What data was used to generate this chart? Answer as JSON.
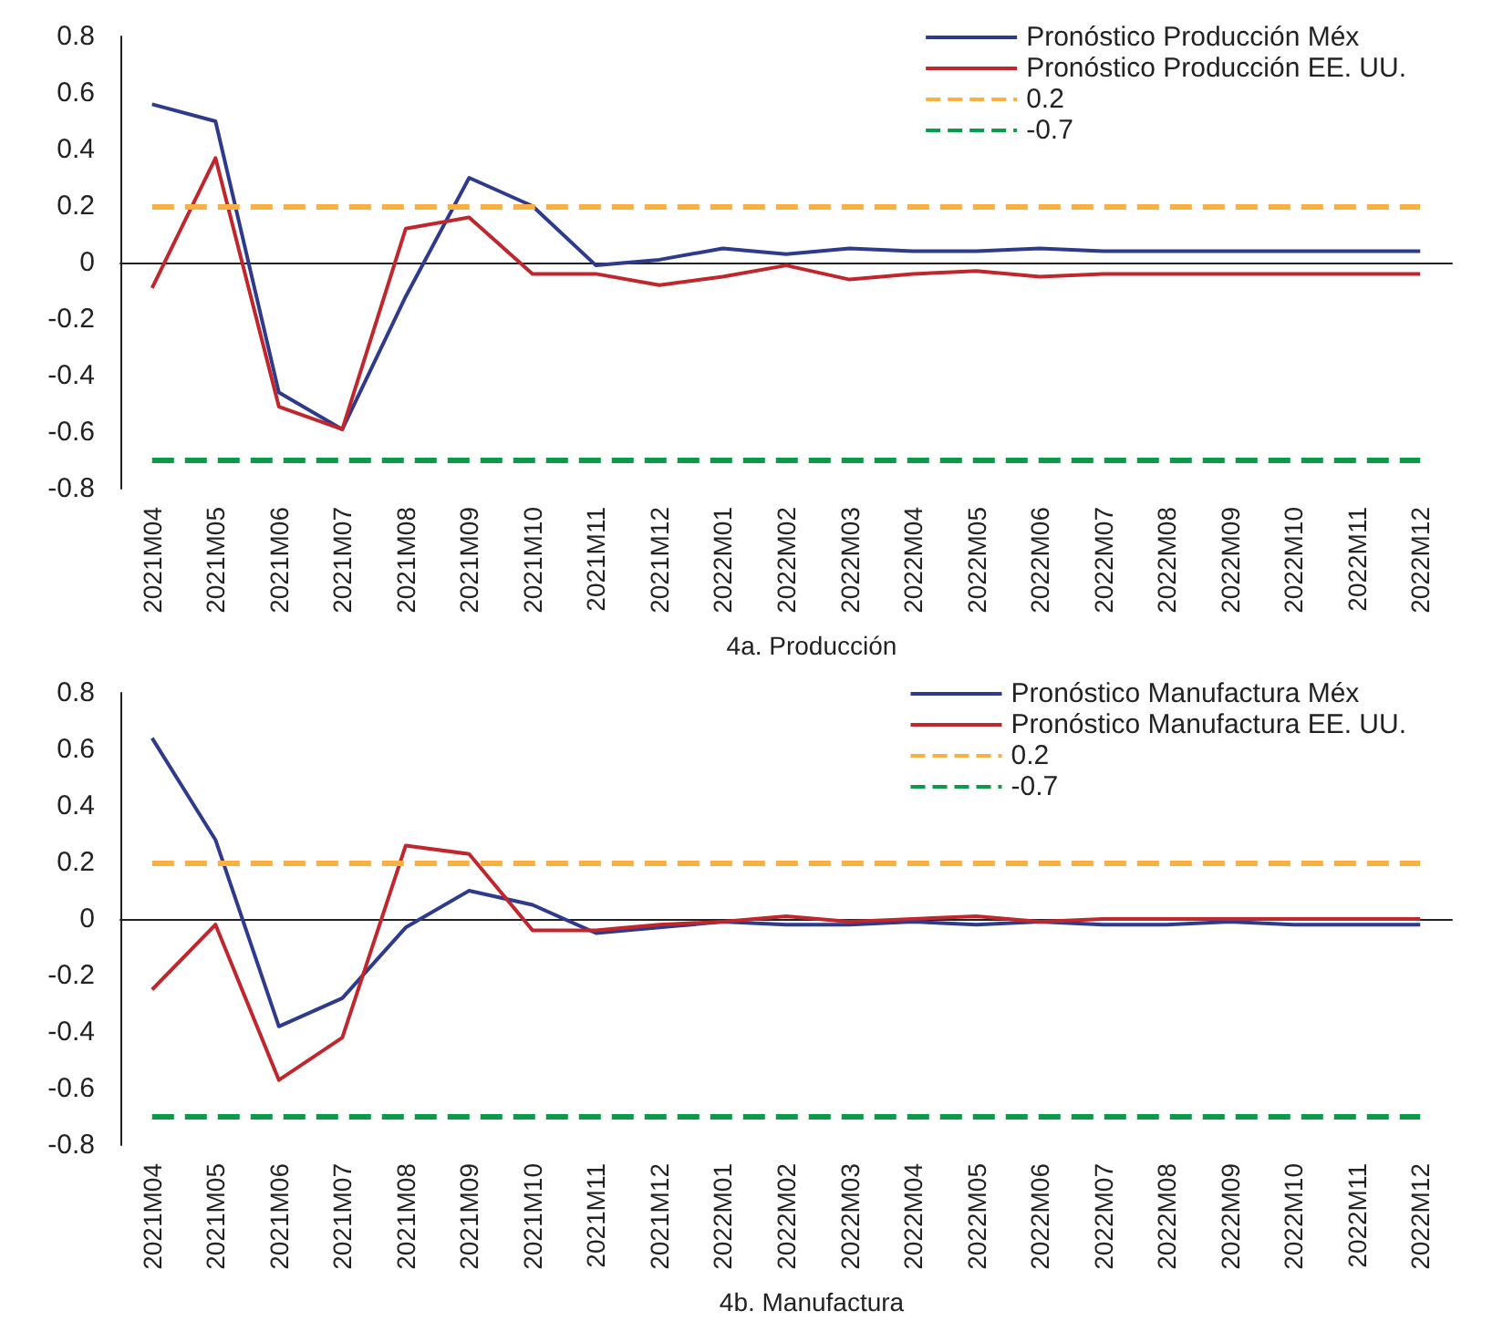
{
  "chart_data": [
    {
      "type": "line",
      "xlabel": "4a. Producción",
      "categories": [
        "2021M04",
        "2021M05",
        "2021M06",
        "2021M07",
        "2021M08",
        "2021M09",
        "2021M10",
        "2021M11",
        "2021M12",
        "2022M01",
        "2022M02",
        "2022M03",
        "2022M04",
        "2022M05",
        "2022M06",
        "2022M07",
        "2022M08",
        "2022M09",
        "2022M10",
        "2022M11",
        "2022M12"
      ],
      "series": [
        {
          "name": "Pronóstico Producción Méx",
          "color": "#2e3a8c",
          "values": [
            0.56,
            0.5,
            -0.46,
            -0.59,
            -0.12,
            0.3,
            0.2,
            -0.01,
            0.01,
            0.05,
            0.03,
            0.05,
            0.04,
            0.04,
            0.05,
            0.04,
            0.04,
            0.04,
            0.04,
            0.04,
            0.04
          ]
        },
        {
          "name": "Pronóstico Producción EE. UU.",
          "color": "#c0272d",
          "values": [
            -0.09,
            0.37,
            -0.51,
            -0.59,
            0.12,
            0.16,
            -0.04,
            -0.04,
            -0.08,
            -0.05,
            -0.01,
            -0.06,
            -0.04,
            -0.03,
            -0.05,
            -0.04,
            -0.04,
            -0.04,
            -0.04,
            -0.04,
            -0.04
          ]
        }
      ],
      "ref_lines": [
        {
          "axis": "y",
          "value": 0.2,
          "label": "0.2",
          "color": "#f9b040",
          "line_style": "dashed"
        },
        {
          "axis": "y",
          "value": -0.7,
          "label": "-0.7",
          "color": "#0a9a48",
          "line_style": "dashed"
        }
      ],
      "ylim": [
        -0.8,
        0.8
      ],
      "yticks": [
        -0.8,
        -0.6,
        -0.4,
        -0.2,
        0,
        0.2,
        0.4,
        0.6,
        0.8
      ],
      "legend": "top right",
      "marker": "none",
      "line_style": "solid"
    },
    {
      "type": "line",
      "xlabel": "4b. Manufactura",
      "categories": [
        "2021M04",
        "2021M05",
        "2021M06",
        "2021M07",
        "2021M08",
        "2021M09",
        "2021M10",
        "2021M11",
        "2021M12",
        "2022M01",
        "2022M02",
        "2022M03",
        "2022M04",
        "2022M05",
        "2022M06",
        "2022M07",
        "2022M08",
        "2022M09",
        "2022M10",
        "2022M11",
        "2022M12"
      ],
      "series": [
        {
          "name": "Pronóstico Manufactura Méx",
          "color": "#2e3a8c",
          "values": [
            0.64,
            0.28,
            -0.38,
            -0.28,
            -0.03,
            0.1,
            0.05,
            -0.05,
            -0.03,
            -0.01,
            -0.02,
            -0.02,
            -0.01,
            -0.02,
            -0.01,
            -0.02,
            -0.02,
            -0.01,
            -0.02,
            -0.02,
            -0.02
          ]
        },
        {
          "name": "Pronóstico Manufactura EE. UU.",
          "color": "#c0272d",
          "values": [
            -0.25,
            -0.02,
            -0.57,
            -0.42,
            0.26,
            0.23,
            -0.04,
            -0.04,
            -0.02,
            -0.01,
            0.01,
            -0.01,
            0,
            0.01,
            -0.01,
            0,
            0,
            0,
            0,
            0,
            0
          ]
        }
      ],
      "ref_lines": [
        {
          "axis": "y",
          "value": 0.2,
          "label": "0.2",
          "color": "#f9b040",
          "line_style": "dashed"
        },
        {
          "axis": "y",
          "value": -0.7,
          "label": "-0.7",
          "color": "#0a9a48",
          "line_style": "dashed"
        }
      ],
      "ylim": [
        -0.8,
        0.8
      ],
      "yticks": [
        -0.8,
        -0.6,
        -0.4,
        -0.2,
        0,
        0.2,
        0.4,
        0.6,
        0.8
      ],
      "legend": "top right",
      "marker": "none",
      "line_style": "solid"
    }
  ]
}
